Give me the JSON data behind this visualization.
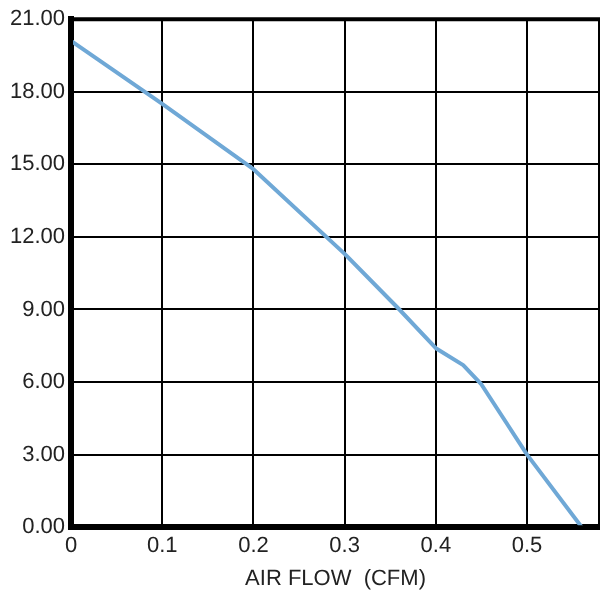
{
  "chart_data": {
    "type": "line",
    "xlabel": "AIR FLOW  (CFM)",
    "x": [
      0,
      0.1,
      0.2,
      0.3,
      0.36,
      0.4,
      0.43,
      0.45,
      0.5,
      0.56
    ],
    "series": [
      {
        "color": "#6fa8d6",
        "values": [
          20.1,
          17.5,
          14.8,
          11.3,
          9,
          7.4,
          6.7,
          5.9,
          3,
          0
        ]
      }
    ],
    "xlim": [
      0,
      0.58
    ],
    "xticks": [
      0,
      0.1,
      0.2,
      0.3,
      0.4,
      0.5
    ],
    "ylim": [
      0,
      21
    ],
    "yticks": [
      {
        "value": 0,
        "label": "0.00"
      },
      {
        "value": 3,
        "label": "3.00"
      },
      {
        "value": 6,
        "label": "6.00"
      },
      {
        "value": 9,
        "label": "9.00"
      },
      {
        "value": 12,
        "label": "12.00"
      },
      {
        "value": 15,
        "label": "15.00"
      },
      {
        "value": 18,
        "label": "18.00"
      },
      {
        "value": 21,
        "label": "21.00"
      }
    ],
    "grid": true,
    "marker": "none",
    "line_style": "solid",
    "legend": false
  }
}
